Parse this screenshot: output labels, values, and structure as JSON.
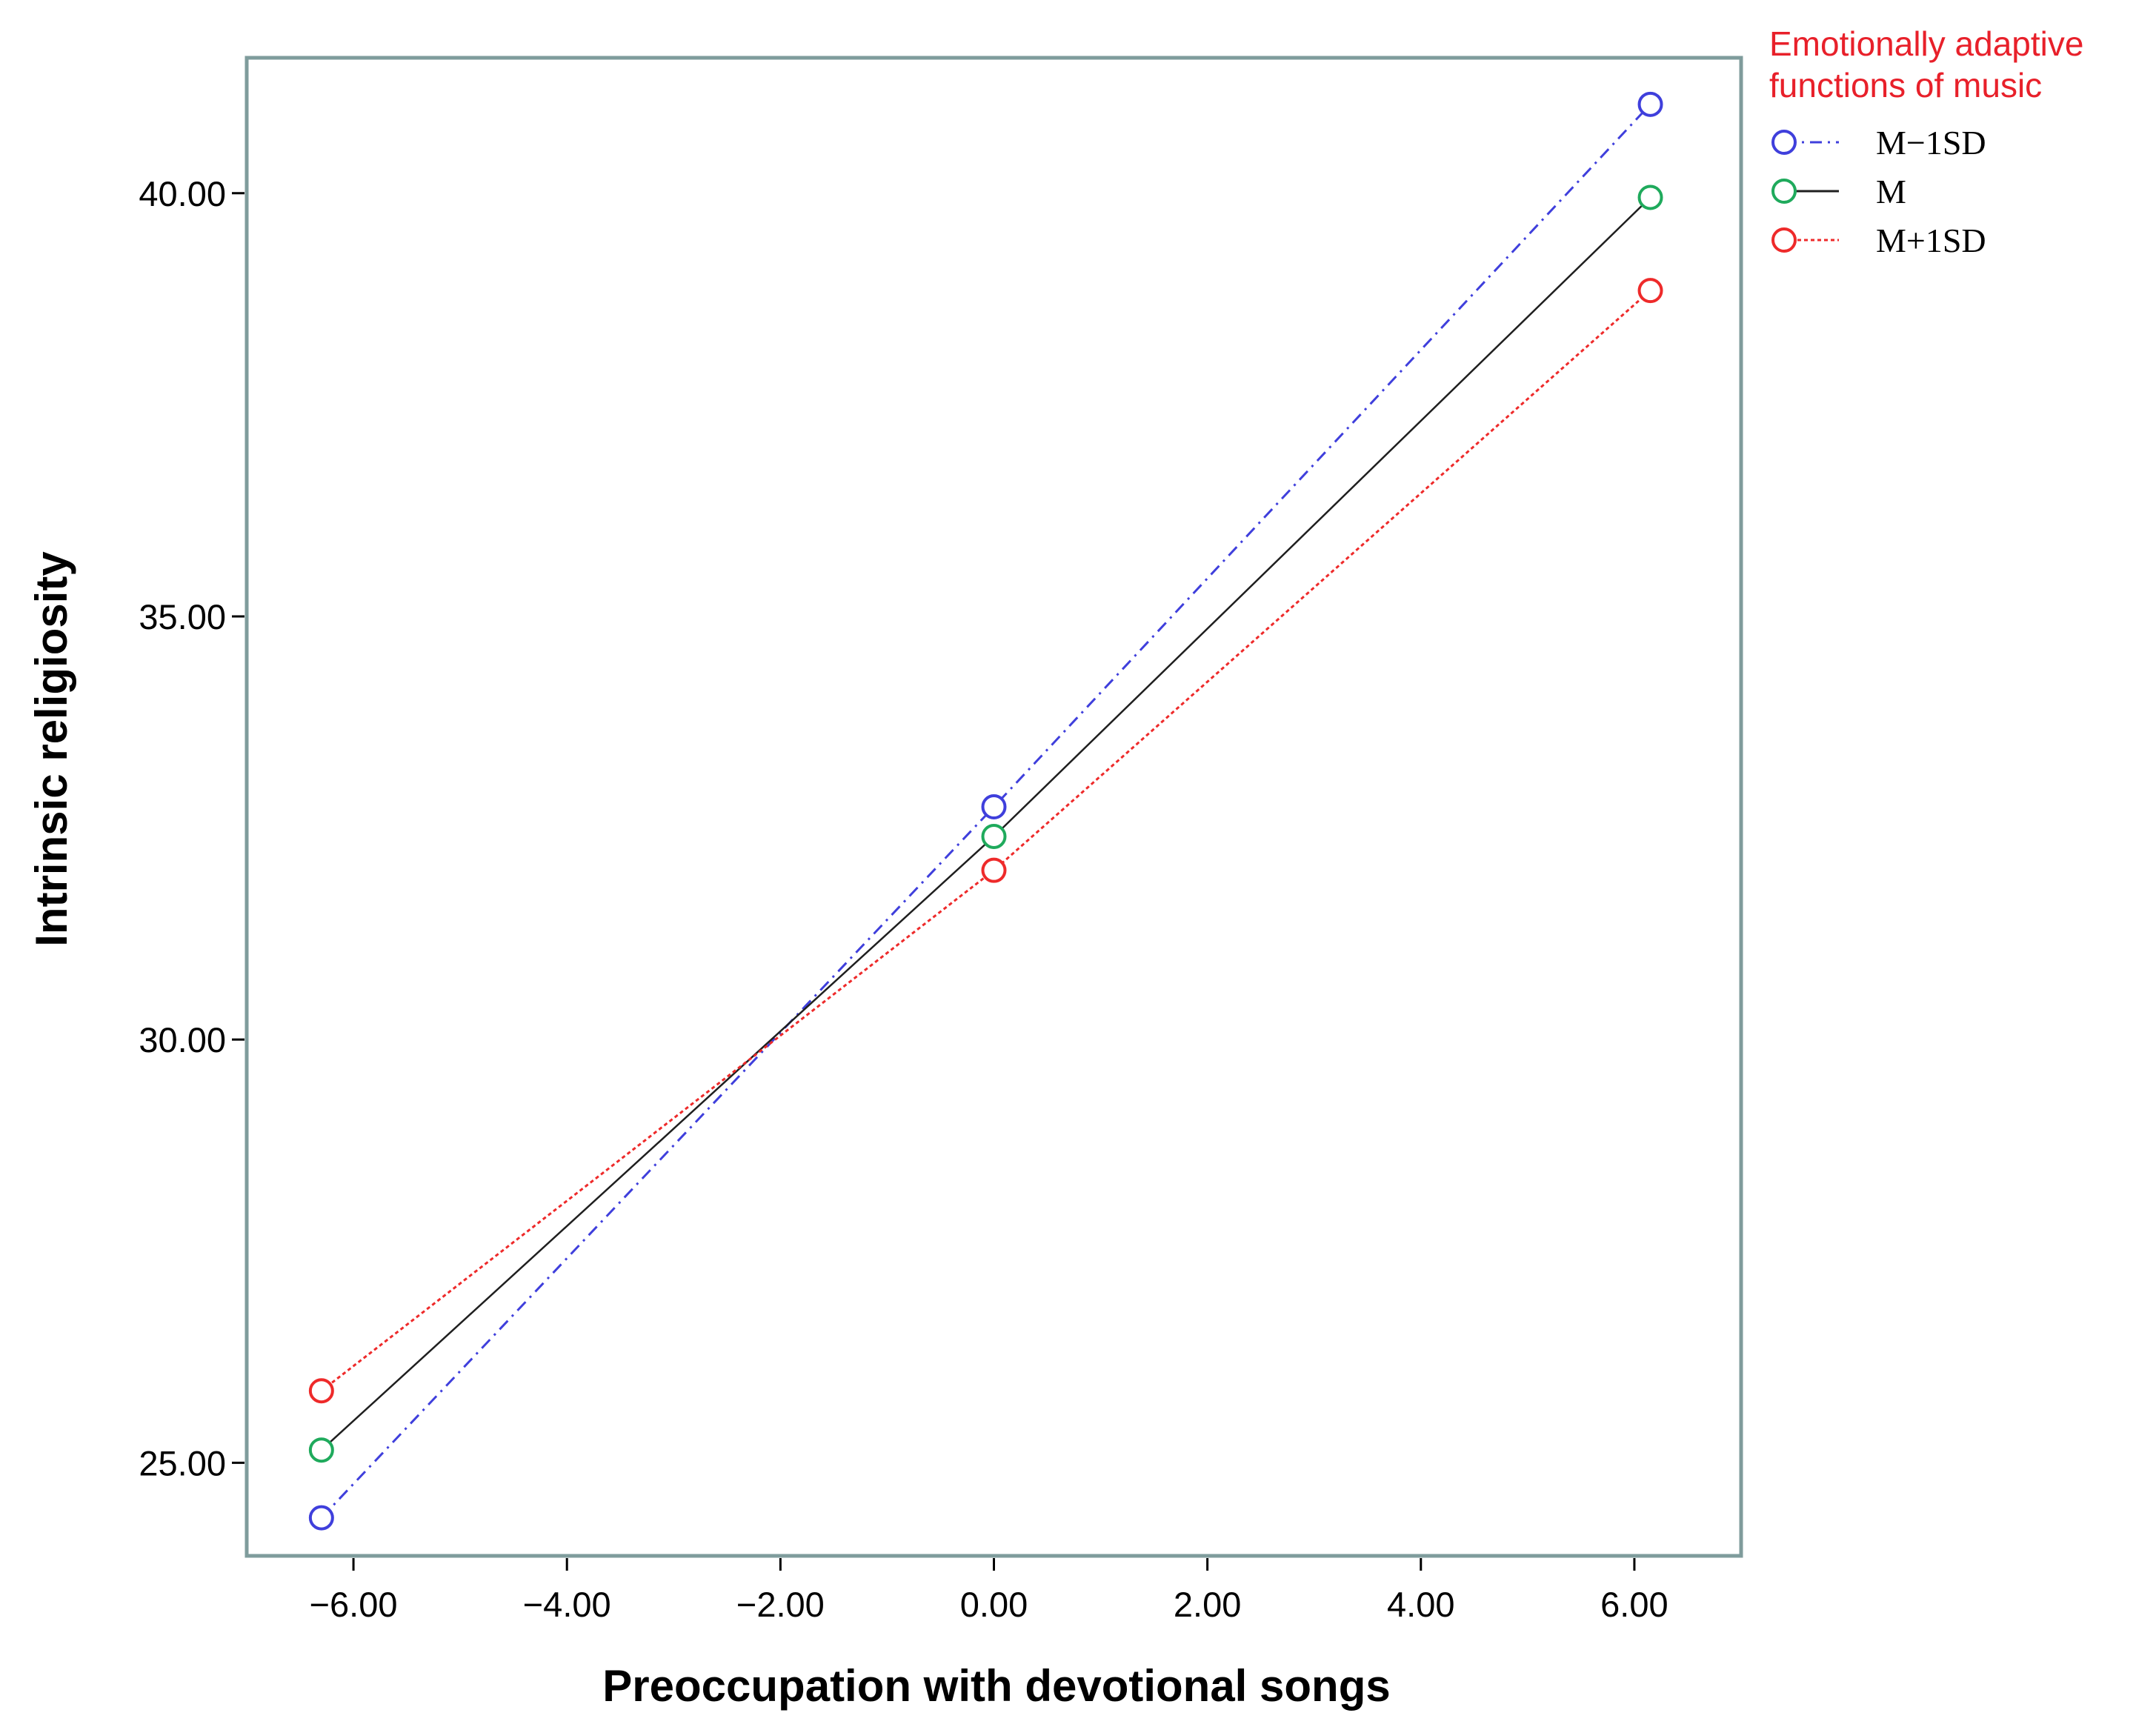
{
  "chart_data": {
    "type": "line",
    "xlabel": "Preoccupation  with devotional  songs",
    "ylabel": "Intrinsic  religiosity",
    "xlim": [
      -7.0,
      7.0
    ],
    "ylim": [
      23.9,
      41.6
    ],
    "x_ticks": [
      -6,
      -4,
      -2,
      0,
      2,
      4,
      6
    ],
    "x_tick_labels": [
      "−6.00",
      "−4.00",
      "−2.00",
      "0.00",
      "2.00",
      "4.00",
      "6.00"
    ],
    "y_ticks": [
      25,
      30,
      35,
      40
    ],
    "y_tick_labels": [
      "25.00",
      "30.00",
      "35.00",
      "40.00"
    ],
    "x": [
      -6.3,
      0.0,
      6.15
    ],
    "legend_title": [
      "Emotionally adaptive",
      "functions  of music"
    ],
    "legend_position": "outside-top-right",
    "grid": false,
    "series": [
      {
        "name": "M−1SD",
        "values": [
          24.35,
          32.75,
          41.05
        ],
        "color": "#3f3fdc",
        "dash": "dash-dot"
      },
      {
        "name": "M",
        "values": [
          25.15,
          32.4,
          39.95
        ],
        "color": "#1f1f1f",
        "marker_color": "#1faa5c",
        "dash": "solid"
      },
      {
        "name": "M+1SD",
        "values": [
          25.85,
          32.0,
          38.85
        ],
        "color": "#ee2a2a",
        "dash": "dotted"
      }
    ]
  },
  "colors": {
    "frame": "#7f9c9c",
    "legend_title": "#e8202a",
    "axis": "#000000"
  }
}
